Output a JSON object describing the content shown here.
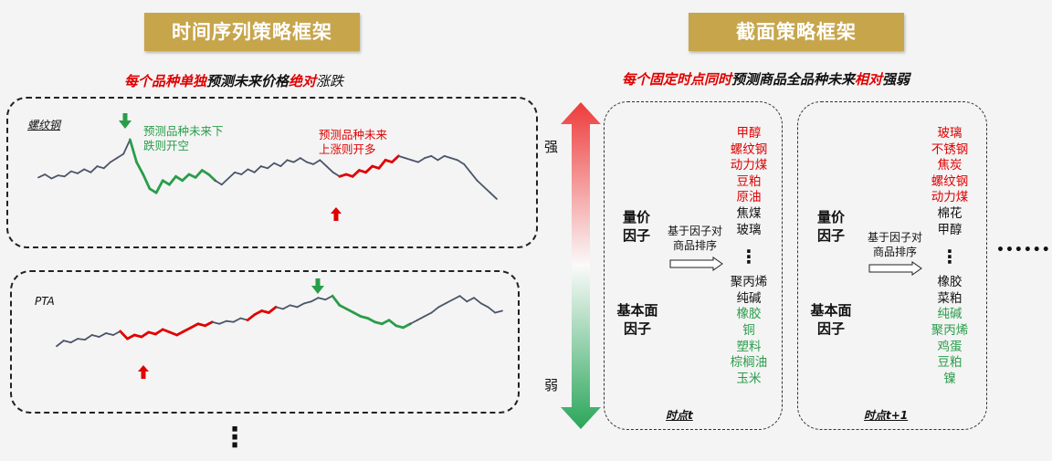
{
  "left": {
    "title": "时间序列策略框架",
    "subtitle": {
      "p1": "每个品种单独",
      "p2": "预测未来价格",
      "p3": "绝对",
      "p4": "涨跌"
    },
    "chart1": {
      "label": "螺纹钢",
      "annotation_short": {
        "line1": "预测品种未来下",
        "line2": "跌则开空"
      },
      "annotation_long": {
        "line1": "预测品种未来",
        "line2": "上涨则开多"
      },
      "series": [
        {
          "y": 55,
          "c": "n"
        },
        {
          "y": 58,
          "c": "n"
        },
        {
          "y": 54,
          "c": "n"
        },
        {
          "y": 57,
          "c": "n"
        },
        {
          "y": 56,
          "c": "n"
        },
        {
          "y": 61,
          "c": "n"
        },
        {
          "y": 59,
          "c": "n"
        },
        {
          "y": 63,
          "c": "n"
        },
        {
          "y": 60,
          "c": "n"
        },
        {
          "y": 66,
          "c": "n"
        },
        {
          "y": 64,
          "c": "n"
        },
        {
          "y": 70,
          "c": "n"
        },
        {
          "y": 74,
          "c": "n"
        },
        {
          "y": 78,
          "c": "n"
        },
        {
          "y": 92,
          "c": "n"
        },
        {
          "y": 70,
          "c": "g"
        },
        {
          "y": 58,
          "c": "g"
        },
        {
          "y": 44,
          "c": "g"
        },
        {
          "y": 40,
          "c": "g"
        },
        {
          "y": 52,
          "c": "g"
        },
        {
          "y": 48,
          "c": "g"
        },
        {
          "y": 56,
          "c": "g"
        },
        {
          "y": 52,
          "c": "g"
        },
        {
          "y": 58,
          "c": "g"
        },
        {
          "y": 55,
          "c": "g"
        },
        {
          "y": 62,
          "c": "g"
        },
        {
          "y": 58,
          "c": "g"
        },
        {
          "y": 52,
          "c": "g"
        },
        {
          "y": 48,
          "c": "n"
        },
        {
          "y": 54,
          "c": "n"
        },
        {
          "y": 60,
          "c": "n"
        },
        {
          "y": 58,
          "c": "n"
        },
        {
          "y": 63,
          "c": "n"
        },
        {
          "y": 60,
          "c": "n"
        },
        {
          "y": 66,
          "c": "n"
        },
        {
          "y": 64,
          "c": "n"
        },
        {
          "y": 69,
          "c": "n"
        },
        {
          "y": 66,
          "c": "n"
        },
        {
          "y": 72,
          "c": "n"
        },
        {
          "y": 70,
          "c": "n"
        },
        {
          "y": 74,
          "c": "n"
        },
        {
          "y": 70,
          "c": "n"
        },
        {
          "y": 68,
          "c": "n"
        },
        {
          "y": 72,
          "c": "n"
        },
        {
          "y": 66,
          "c": "n"
        },
        {
          "y": 60,
          "c": "n"
        },
        {
          "y": 56,
          "c": "n"
        },
        {
          "y": 58,
          "c": "r"
        },
        {
          "y": 56,
          "c": "r"
        },
        {
          "y": 62,
          "c": "r"
        },
        {
          "y": 60,
          "c": "r"
        },
        {
          "y": 66,
          "c": "r"
        },
        {
          "y": 64,
          "c": "r"
        },
        {
          "y": 72,
          "c": "r"
        },
        {
          "y": 70,
          "c": "r"
        },
        {
          "y": 76,
          "c": "r"
        },
        {
          "y": 74,
          "c": "n"
        },
        {
          "y": 72,
          "c": "n"
        },
        {
          "y": 70,
          "c": "n"
        },
        {
          "y": 74,
          "c": "n"
        },
        {
          "y": 76,
          "c": "n"
        },
        {
          "y": 72,
          "c": "n"
        },
        {
          "y": 76,
          "c": "n"
        },
        {
          "y": 74,
          "c": "n"
        },
        {
          "y": 72,
          "c": "n"
        },
        {
          "y": 68,
          "c": "n"
        },
        {
          "y": 60,
          "c": "n"
        },
        {
          "y": 52,
          "c": "n"
        },
        {
          "y": 46,
          "c": "n"
        },
        {
          "y": 40,
          "c": "n"
        },
        {
          "y": 34,
          "c": "n"
        }
      ]
    },
    "chart2": {
      "label": "PTA",
      "series": [
        {
          "y": 38,
          "c": "n"
        },
        {
          "y": 44,
          "c": "n"
        },
        {
          "y": 42,
          "c": "n"
        },
        {
          "y": 46,
          "c": "n"
        },
        {
          "y": 45,
          "c": "n"
        },
        {
          "y": 50,
          "c": "n"
        },
        {
          "y": 48,
          "c": "n"
        },
        {
          "y": 52,
          "c": "n"
        },
        {
          "y": 50,
          "c": "n"
        },
        {
          "y": 54,
          "c": "n"
        },
        {
          "y": 46,
          "c": "r"
        },
        {
          "y": 50,
          "c": "r"
        },
        {
          "y": 48,
          "c": "r"
        },
        {
          "y": 53,
          "c": "r"
        },
        {
          "y": 51,
          "c": "r"
        },
        {
          "y": 56,
          "c": "r"
        },
        {
          "y": 53,
          "c": "r"
        },
        {
          "y": 50,
          "c": "r"
        },
        {
          "y": 54,
          "c": "r"
        },
        {
          "y": 58,
          "c": "r"
        },
        {
          "y": 62,
          "c": "r"
        },
        {
          "y": 60,
          "c": "r"
        },
        {
          "y": 64,
          "c": "r"
        },
        {
          "y": 62,
          "c": "n"
        },
        {
          "y": 65,
          "c": "n"
        },
        {
          "y": 64,
          "c": "n"
        },
        {
          "y": 68,
          "c": "n"
        },
        {
          "y": 66,
          "c": "n"
        },
        {
          "y": 72,
          "c": "r"
        },
        {
          "y": 76,
          "c": "r"
        },
        {
          "y": 74,
          "c": "r"
        },
        {
          "y": 80,
          "c": "r"
        },
        {
          "y": 78,
          "c": "n"
        },
        {
          "y": 82,
          "c": "n"
        },
        {
          "y": 80,
          "c": "n"
        },
        {
          "y": 84,
          "c": "n"
        },
        {
          "y": 86,
          "c": "n"
        },
        {
          "y": 90,
          "c": "n"
        },
        {
          "y": 88,
          "c": "n"
        },
        {
          "y": 92,
          "c": "n"
        },
        {
          "y": 82,
          "c": "g"
        },
        {
          "y": 78,
          "c": "g"
        },
        {
          "y": 74,
          "c": "g"
        },
        {
          "y": 70,
          "c": "g"
        },
        {
          "y": 68,
          "c": "g"
        },
        {
          "y": 64,
          "c": "g"
        },
        {
          "y": 62,
          "c": "g"
        },
        {
          "y": 66,
          "c": "g"
        },
        {
          "y": 60,
          "c": "g"
        },
        {
          "y": 58,
          "c": "g"
        },
        {
          "y": 62,
          "c": "g"
        },
        {
          "y": 66,
          "c": "n"
        },
        {
          "y": 70,
          "c": "n"
        },
        {
          "y": 74,
          "c": "n"
        },
        {
          "y": 80,
          "c": "n"
        },
        {
          "y": 84,
          "c": "n"
        },
        {
          "y": 88,
          "c": "n"
        },
        {
          "y": 92,
          "c": "n"
        },
        {
          "y": 86,
          "c": "n"
        },
        {
          "y": 90,
          "c": "n"
        },
        {
          "y": 84,
          "c": "n"
        },
        {
          "y": 80,
          "c": "n"
        },
        {
          "y": 74,
          "c": "n"
        },
        {
          "y": 76,
          "c": "n"
        }
      ]
    },
    "more_dots": "⋮"
  },
  "right": {
    "title": "截面策略框架",
    "subtitle": {
      "p1": "每个固定时点同时",
      "p2": "预测商品全品种未来",
      "p3": "相对",
      "p4": "强弱"
    },
    "strong": "强",
    "weak": "弱",
    "col1": {
      "factor1": {
        "line1": "量价",
        "line2": "因子"
      },
      "factor2": {
        "line1": "基本面",
        "line2": "因子"
      },
      "mid": {
        "line1": "基于因子对",
        "line2": "商品排序"
      },
      "top": [
        "甲醇",
        "螺纹钢",
        "动力煤",
        "豆粕",
        "原油"
      ],
      "middle": [
        "焦煤",
        "玻璃"
      ],
      "vdots": "⋮",
      "lower": [
        "聚丙烯",
        "纯碱"
      ],
      "bottom": [
        "橡胶",
        "铜",
        "塑料",
        "棕榈油",
        "玉米"
      ],
      "time": "时点t"
    },
    "col2": {
      "factor1": {
        "line1": "量价",
        "line2": "因子"
      },
      "factor2": {
        "line1": "基本面",
        "line2": "因子"
      },
      "mid": {
        "line1": "基于因子对",
        "line2": "商品排序"
      },
      "top": [
        "玻璃",
        "不锈钢",
        "焦炭",
        "螺纹钢",
        "动力煤"
      ],
      "middle": [
        "棉花",
        "甲醇"
      ],
      "vdots": "⋮",
      "lower": [
        "橡胶",
        "菜粕"
      ],
      "bottom": [
        "纯碱",
        "聚丙烯",
        "鸡蛋",
        "豆粕",
        "镍"
      ],
      "time": "时点t+1"
    },
    "ellipsis": "••••••"
  },
  "colors": {
    "gold": "#c7a54b",
    "red": "#e00000",
    "green": "#2a9d4a",
    "navy": "#4a5568"
  }
}
